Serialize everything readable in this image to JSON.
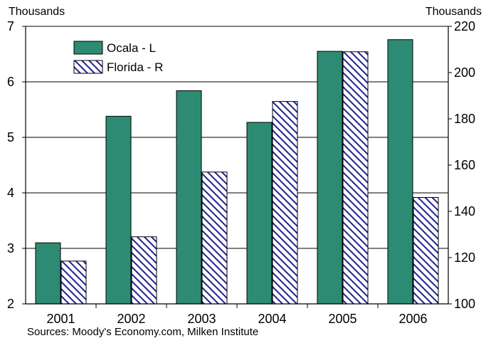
{
  "chart_data": {
    "type": "bar",
    "categories": [
      "2001",
      "2002",
      "2003",
      "2004",
      "2005",
      "2006"
    ],
    "series": [
      {
        "name": "Ocala - L",
        "axis": "left",
        "fill": "solid",
        "color": "#2e8b73",
        "values": [
          3.1,
          5.38,
          5.84,
          5.27,
          6.55,
          6.76
        ]
      },
      {
        "name": "Florida - R",
        "axis": "right",
        "fill": "hatched",
        "color": "#1f1f8f",
        "values": [
          118.5,
          129,
          157,
          187.5,
          209,
          146
        ]
      }
    ],
    "left_axis": {
      "unit": "Thousands",
      "min": 2,
      "max": 7,
      "ticks": [
        "2",
        "3",
        "4",
        "5",
        "6",
        "7"
      ]
    },
    "right_axis": {
      "unit": "Thousands",
      "min": 100,
      "max": 220,
      "ticks": [
        "100",
        "120",
        "140",
        "160",
        "180",
        "200",
        "220"
      ]
    },
    "grid": true,
    "legend_position": "top-left",
    "source": "Sources: Moody's Economy.com, Milken Institute"
  }
}
